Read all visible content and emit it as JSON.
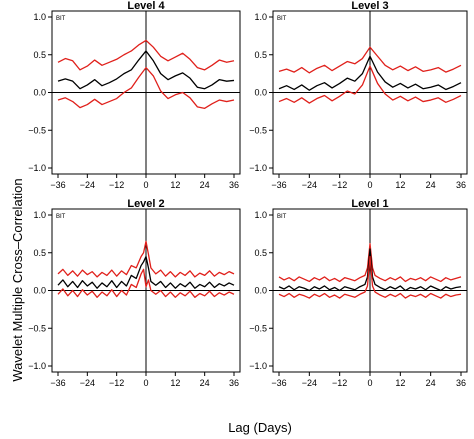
{
  "figure": {
    "ylabel": "Wavelet Multiple Cross–Correlation",
    "xlabel": "Lag (Days)"
  },
  "colors": {
    "estimate": "#000000",
    "bounds": "#e0201b"
  },
  "chart_data": [
    {
      "type": "line",
      "title": "Level 4",
      "tag": "BIT",
      "xlim": [
        -36,
        36
      ],
      "ylim": [
        -1.0,
        1.0
      ],
      "xticks": [
        -36,
        -24,
        -12,
        0,
        12,
        24,
        36
      ],
      "yticks": [
        -1.0,
        -0.5,
        0.0,
        0.5,
        1.0
      ],
      "x": [
        -36,
        -33,
        -30,
        -27,
        -24,
        -21,
        -18,
        -15,
        -12,
        -9,
        -6,
        -3,
        0,
        3,
        6,
        9,
        12,
        15,
        18,
        21,
        24,
        27,
        30,
        33,
        36
      ],
      "series": [
        {
          "role": "upper",
          "values": [
            0.4,
            0.45,
            0.42,
            0.3,
            0.35,
            0.43,
            0.36,
            0.4,
            0.44,
            0.5,
            0.55,
            0.63,
            0.69,
            0.6,
            0.48,
            0.42,
            0.47,
            0.52,
            0.44,
            0.33,
            0.3,
            0.36,
            0.43,
            0.4,
            0.42
          ]
        },
        {
          "role": "estimate",
          "values": [
            0.15,
            0.18,
            0.15,
            0.05,
            0.1,
            0.17,
            0.09,
            0.13,
            0.18,
            0.25,
            0.3,
            0.43,
            0.55,
            0.42,
            0.25,
            0.17,
            0.22,
            0.26,
            0.19,
            0.07,
            0.05,
            0.1,
            0.17,
            0.15,
            0.16
          ]
        },
        {
          "role": "lower",
          "values": [
            -0.1,
            -0.07,
            -0.12,
            -0.2,
            -0.16,
            -0.09,
            -0.16,
            -0.12,
            -0.08,
            0.0,
            0.06,
            0.2,
            0.33,
            0.22,
            0.02,
            -0.08,
            -0.03,
            0.0,
            -0.07,
            -0.19,
            -0.21,
            -0.15,
            -0.1,
            -0.12,
            -0.1
          ]
        }
      ]
    },
    {
      "type": "line",
      "title": "Level 3",
      "tag": "BIT",
      "xlim": [
        -36,
        36
      ],
      "ylim": [
        -1.0,
        1.0
      ],
      "xticks": [
        -36,
        -24,
        -12,
        0,
        12,
        24,
        36
      ],
      "yticks": [
        -1.0,
        -0.5,
        0.0,
        0.5,
        1.0
      ],
      "x": [
        -36,
        -33,
        -30,
        -27,
        -24,
        -21,
        -18,
        -15,
        -12,
        -9,
        -6,
        -3,
        0,
        3,
        6,
        9,
        12,
        15,
        18,
        21,
        24,
        27,
        30,
        33,
        36
      ],
      "series": [
        {
          "role": "upper",
          "values": [
            0.28,
            0.31,
            0.27,
            0.33,
            0.26,
            0.32,
            0.36,
            0.29,
            0.35,
            0.41,
            0.38,
            0.45,
            0.6,
            0.48,
            0.36,
            0.3,
            0.35,
            0.29,
            0.34,
            0.28,
            0.3,
            0.33,
            0.27,
            0.31,
            0.36
          ]
        },
        {
          "role": "estimate",
          "values": [
            0.05,
            0.09,
            0.04,
            0.1,
            0.03,
            0.09,
            0.13,
            0.06,
            0.12,
            0.19,
            0.15,
            0.25,
            0.48,
            0.27,
            0.14,
            0.07,
            0.12,
            0.06,
            0.11,
            0.05,
            0.07,
            0.1,
            0.04,
            0.08,
            0.13
          ]
        },
        {
          "role": "lower",
          "values": [
            -0.12,
            -0.08,
            -0.13,
            -0.07,
            -0.14,
            -0.08,
            -0.04,
            -0.11,
            -0.05,
            0.02,
            -0.02,
            0.1,
            0.35,
            0.12,
            -0.02,
            -0.1,
            -0.05,
            -0.11,
            -0.06,
            -0.12,
            -0.1,
            -0.07,
            -0.13,
            -0.09,
            -0.04
          ]
        }
      ]
    },
    {
      "type": "line",
      "title": "Level 2",
      "tag": "BIT",
      "xlim": [
        -36,
        36
      ],
      "ylim": [
        -1.0,
        1.0
      ],
      "xticks": [
        -36,
        -24,
        -12,
        0,
        12,
        24,
        36
      ],
      "yticks": [
        -1.0,
        -0.5,
        0.0,
        0.5,
        1.0
      ],
      "x": [
        -36,
        -34,
        -32,
        -30,
        -28,
        -26,
        -24,
        -22,
        -20,
        -18,
        -16,
        -14,
        -12,
        -10,
        -8,
        -6,
        -4,
        -2,
        -1,
        0,
        1,
        2,
        4,
        6,
        8,
        10,
        12,
        14,
        16,
        18,
        20,
        22,
        24,
        26,
        28,
        30,
        32,
        34,
        36
      ],
      "series": [
        {
          "role": "upper",
          "values": [
            0.22,
            0.28,
            0.2,
            0.26,
            0.19,
            0.27,
            0.21,
            0.25,
            0.18,
            0.24,
            0.2,
            0.27,
            0.19,
            0.26,
            0.21,
            0.33,
            0.3,
            0.45,
            0.5,
            0.65,
            0.48,
            0.3,
            0.22,
            0.27,
            0.19,
            0.25,
            0.18,
            0.24,
            0.2,
            0.26,
            0.18,
            0.23,
            0.2,
            0.26,
            0.19,
            0.24,
            0.21,
            0.25,
            0.22
          ]
        },
        {
          "role": "estimate",
          "values": [
            0.07,
            0.14,
            0.05,
            0.12,
            0.04,
            0.13,
            0.06,
            0.11,
            0.03,
            0.1,
            0.05,
            0.13,
            0.04,
            0.12,
            0.06,
            0.2,
            0.16,
            0.33,
            0.38,
            0.45,
            0.3,
            0.12,
            0.07,
            0.12,
            0.04,
            0.1,
            0.03,
            0.09,
            0.05,
            0.11,
            0.03,
            0.08,
            0.05,
            0.11,
            0.04,
            0.09,
            0.06,
            0.1,
            0.07
          ]
        },
        {
          "role": "lower",
          "values": [
            -0.05,
            0.02,
            -0.07,
            0.0,
            -0.08,
            0.01,
            -0.06,
            -0.01,
            -0.09,
            -0.02,
            -0.07,
            0.01,
            -0.08,
            0.0,
            -0.06,
            0.08,
            0.04,
            0.22,
            0.28,
            0.05,
            0.14,
            0.0,
            -0.05,
            0.0,
            -0.08,
            -0.02,
            -0.09,
            -0.03,
            -0.07,
            -0.01,
            -0.09,
            -0.04,
            -0.07,
            -0.01,
            -0.08,
            -0.03,
            -0.06,
            -0.02,
            -0.05
          ]
        }
      ]
    },
    {
      "type": "line",
      "title": "Level 1",
      "tag": "BIT",
      "xlim": [
        -36,
        36
      ],
      "ylim": [
        -1.0,
        1.0
      ],
      "xticks": [
        -36,
        -24,
        -12,
        0,
        12,
        24,
        36
      ],
      "yticks": [
        -1.0,
        -0.5,
        0.0,
        0.5,
        1.0
      ],
      "x": [
        -36,
        -34,
        -32,
        -30,
        -28,
        -26,
        -24,
        -22,
        -20,
        -18,
        -16,
        -14,
        -12,
        -10,
        -8,
        -6,
        -4,
        -2,
        -1,
        0,
        1,
        2,
        4,
        6,
        8,
        10,
        12,
        14,
        16,
        18,
        20,
        22,
        24,
        26,
        28,
        30,
        32,
        34,
        36
      ],
      "series": [
        {
          "role": "upper",
          "values": [
            0.18,
            0.14,
            0.17,
            0.13,
            0.18,
            0.15,
            0.12,
            0.17,
            0.14,
            0.18,
            0.13,
            0.16,
            0.12,
            0.17,
            0.15,
            0.13,
            0.17,
            0.2,
            0.3,
            0.62,
            0.3,
            0.2,
            0.16,
            0.13,
            0.17,
            0.14,
            0.18,
            0.12,
            0.16,
            0.14,
            0.17,
            0.13,
            0.18,
            0.15,
            0.12,
            0.17,
            0.14,
            0.16,
            0.18
          ]
        },
        {
          "role": "estimate",
          "values": [
            0.05,
            0.02,
            0.06,
            0.01,
            0.05,
            0.03,
            0.0,
            0.05,
            0.02,
            0.06,
            0.01,
            0.04,
            0.0,
            0.05,
            0.03,
            0.01,
            0.05,
            0.08,
            0.18,
            0.55,
            0.18,
            0.08,
            0.04,
            0.01,
            0.05,
            0.02,
            0.06,
            0.0,
            0.04,
            0.02,
            0.05,
            0.01,
            0.06,
            0.03,
            0.0,
            0.05,
            0.02,
            0.04,
            0.05
          ]
        },
        {
          "role": "lower",
          "values": [
            -0.05,
            -0.08,
            -0.04,
            -0.09,
            -0.05,
            -0.07,
            -0.1,
            -0.05,
            -0.08,
            -0.04,
            -0.09,
            -0.06,
            -0.1,
            -0.05,
            -0.07,
            -0.09,
            -0.05,
            -0.02,
            0.06,
            0.45,
            0.06,
            -0.02,
            -0.06,
            -0.09,
            -0.05,
            -0.08,
            -0.04,
            -0.1,
            -0.06,
            -0.08,
            -0.05,
            -0.09,
            -0.04,
            -0.07,
            -0.1,
            -0.05,
            -0.08,
            -0.06,
            -0.05
          ]
        }
      ]
    }
  ]
}
